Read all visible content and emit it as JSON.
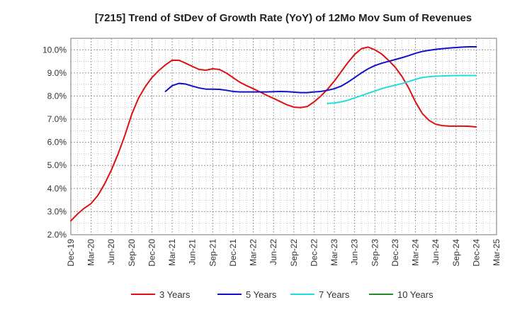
{
  "chart_data": {
    "type": "line",
    "title": "[7215]  Trend of StDev of Growth Rate (YoY) of 12Mo Mov Sum of Revenues",
    "xlabel": "",
    "ylabel": "",
    "ylim": [
      2.0,
      10.5
    ],
    "y_ticks": [
      "2.0%",
      "3.0%",
      "4.0%",
      "5.0%",
      "6.0%",
      "7.0%",
      "8.0%",
      "9.0%",
      "10.0%"
    ],
    "y_tick_values": [
      2,
      3,
      4,
      5,
      6,
      7,
      8,
      9,
      10
    ],
    "x_ticks": [
      "Dec-19",
      "Mar-20",
      "Jun-20",
      "Sep-20",
      "Dec-20",
      "Mar-21",
      "Jun-21",
      "Sep-21",
      "Dec-21",
      "Mar-22",
      "Jun-22",
      "Sep-22",
      "Dec-22",
      "Mar-23",
      "Jun-23",
      "Sep-23",
      "Dec-23",
      "Mar-24",
      "Jun-24",
      "Sep-24",
      "Dec-24",
      "Mar-25"
    ],
    "x_range_months": [
      0,
      63
    ],
    "grid": true,
    "legend_position": "bottom",
    "series": [
      {
        "name": "3 Years",
        "color": "#dd1111",
        "x": [
          0,
          1,
          2,
          3,
          4,
          5,
          6,
          7,
          8,
          9,
          10,
          11,
          12,
          13,
          14,
          15,
          16,
          17,
          18,
          19,
          20,
          21,
          22,
          23,
          24,
          25,
          26,
          27,
          28,
          29,
          30,
          31,
          32,
          33,
          34,
          35,
          36,
          37,
          38,
          39,
          40,
          41,
          42,
          43,
          44,
          45,
          46,
          47,
          48,
          49,
          50,
          51,
          52,
          53,
          54,
          55,
          56,
          57,
          58,
          59,
          60
        ],
        "values": [
          2.6,
          2.9,
          3.15,
          3.35,
          3.7,
          4.2,
          4.8,
          5.5,
          6.3,
          7.2,
          7.9,
          8.4,
          8.8,
          9.1,
          9.35,
          9.55,
          9.55,
          9.42,
          9.28,
          9.15,
          9.12,
          9.18,
          9.15,
          9.0,
          8.8,
          8.6,
          8.45,
          8.32,
          8.18,
          8.03,
          7.9,
          7.76,
          7.62,
          7.52,
          7.5,
          7.55,
          7.75,
          8.0,
          8.3,
          8.65,
          9.05,
          9.45,
          9.8,
          10.05,
          10.12,
          10.0,
          9.82,
          9.55,
          9.25,
          8.85,
          8.35,
          7.75,
          7.25,
          6.95,
          6.78,
          6.72,
          6.7,
          6.7,
          6.7,
          6.69,
          6.66
        ]
      },
      {
        "name": "5 Years",
        "color": "#1111cc",
        "x": [
          14,
          15,
          16,
          17,
          18,
          19,
          20,
          21,
          22,
          23,
          24,
          25,
          26,
          27,
          28,
          29,
          30,
          31,
          32,
          33,
          34,
          35,
          36,
          37,
          38,
          39,
          40,
          41,
          42,
          43,
          44,
          45,
          46,
          47,
          48,
          49,
          50,
          51,
          52,
          53,
          54,
          55,
          56,
          57,
          58,
          59,
          60
        ],
        "values": [
          8.2,
          8.45,
          8.55,
          8.52,
          8.43,
          8.35,
          8.3,
          8.3,
          8.29,
          8.25,
          8.2,
          8.18,
          8.18,
          8.18,
          8.18,
          8.18,
          8.19,
          8.2,
          8.19,
          8.17,
          8.15,
          8.15,
          8.18,
          8.2,
          8.25,
          8.32,
          8.43,
          8.6,
          8.8,
          9.0,
          9.18,
          9.32,
          9.42,
          9.5,
          9.58,
          9.66,
          9.75,
          9.85,
          9.93,
          9.98,
          10.02,
          10.05,
          10.08,
          10.1,
          10.12,
          10.13,
          10.13
        ]
      },
      {
        "name": "7 Years",
        "color": "#22dddd",
        "x": [
          38,
          39,
          40,
          41,
          42,
          43,
          44,
          45,
          46,
          47,
          48,
          49,
          50,
          51,
          52,
          53,
          54,
          55,
          56,
          57,
          58,
          59,
          60
        ],
        "values": [
          7.68,
          7.7,
          7.75,
          7.82,
          7.92,
          8.02,
          8.12,
          8.22,
          8.32,
          8.4,
          8.47,
          8.54,
          8.63,
          8.72,
          8.8,
          8.84,
          8.86,
          8.87,
          8.88,
          8.89,
          8.89,
          8.89,
          8.89
        ]
      },
      {
        "name": "10 Years",
        "color": "#228b22",
        "x": [],
        "values": []
      }
    ]
  }
}
